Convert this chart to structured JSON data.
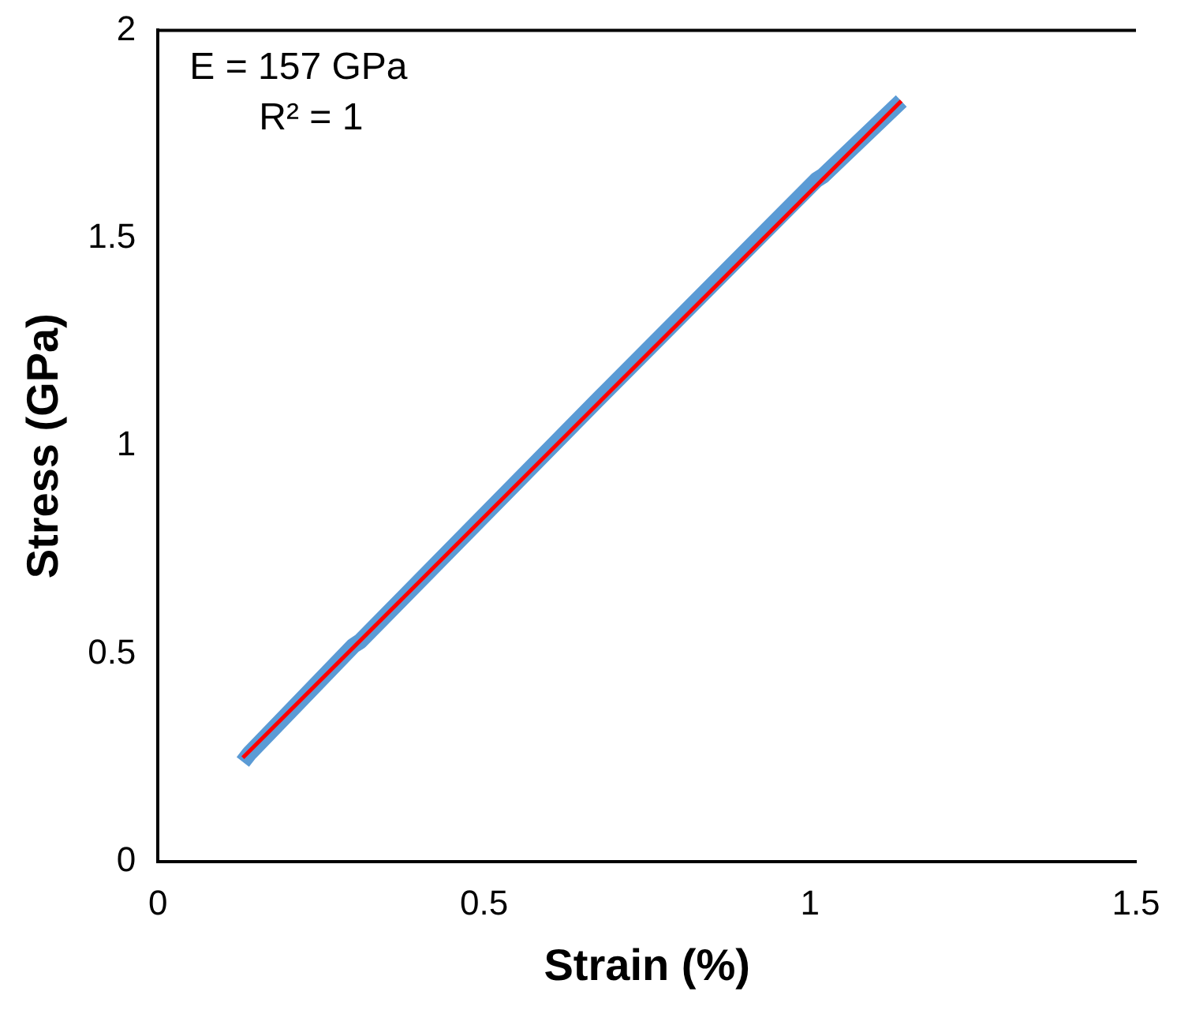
{
  "chart_data": {
    "type": "line",
    "xlabel": "Strain (%)",
    "ylabel": "Stress (GPa)",
    "xlim": [
      0,
      1.5
    ],
    "xticks": [
      0,
      0.5,
      1,
      1.5
    ],
    "ylim": [
      0,
      2
    ],
    "yticks": [
      0,
      0.5,
      1,
      1.5,
      2
    ],
    "grid": false,
    "legend": false,
    "marker": "none",
    "line_style": "solid",
    "annotations": [
      "E = 157 GPa",
      "R² = 1"
    ],
    "series": [
      {
        "color": "#5b9bd5",
        "x": [
          0.13,
          0.14,
          0.3,
          0.31,
          0.68,
          1.01,
          1.02,
          1.14
        ],
        "values": [
          0.24,
          0.26,
          0.52,
          0.53,
          1.12,
          1.64,
          1.65,
          1.83
        ]
      },
      {
        "color": "#ff0000",
        "x": [
          0.13,
          1.14
        ],
        "values": [
          0.25,
          1.83
        ]
      }
    ]
  }
}
